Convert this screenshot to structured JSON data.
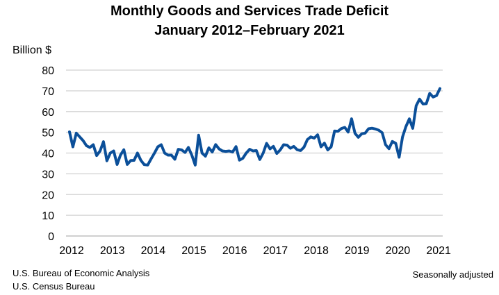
{
  "chart_data": {
    "type": "line",
    "title": "Monthly Goods and Services Trade Deficit",
    "subtitle": "January 2012–February 2021",
    "ylabel": "Billion $",
    "xlabel": "",
    "ylim": [
      0,
      80
    ],
    "yticks": [
      "0",
      "10",
      "20",
      "30",
      "40",
      "50",
      "60",
      "70",
      "80"
    ],
    "xticks": [
      "2012",
      "2013",
      "2014",
      "2015",
      "2016",
      "2017",
      "2018",
      "2019",
      "2020",
      "2021"
    ],
    "grid": true,
    "frequency": "monthly",
    "start": "2012-01",
    "end": "2021-02",
    "line_color": "#0b4f99",
    "values": [
      50.2,
      43,
      49.6,
      47.8,
      46,
      43.5,
      42.7,
      44,
      38.8,
      41,
      45.5,
      36.3,
      40,
      41,
      34.5,
      39,
      41.6,
      34.5,
      36.4,
      36.5,
      40,
      36.5,
      34.4,
      34.2,
      37.2,
      40,
      43,
      44,
      40,
      39,
      39,
      37,
      41.8,
      41.5,
      40.3,
      42.7,
      39,
      34.2,
      48.6,
      40,
      38.5,
      42.5,
      40.5,
      44.1,
      42,
      41,
      40.8,
      41,
      40.5,
      43.1,
      36.6,
      37.5,
      40,
      41.8,
      41,
      41.2,
      36.9,
      40,
      44.7,
      42,
      43.2,
      39.8,
      41.5,
      44,
      43.8,
      42.3,
      43.2,
      41.6,
      41.2,
      42.8,
      46.5,
      47.8,
      47.2,
      48.8,
      43,
      44.8,
      41.5,
      43,
      50.6,
      50.5,
      51.8,
      52.4,
      50.1,
      56.5,
      49.5,
      47.6,
      49.3,
      49.6,
      51.7,
      52,
      51.6,
      51,
      49.8,
      44,
      42.1,
      45.6,
      44.7,
      38,
      47.8,
      52.8,
      56.5,
      51.9,
      62.8,
      66,
      63.7,
      63.8,
      68.8,
      67,
      67.7,
      71.1
    ]
  },
  "footer": {
    "source_1": "U.S. Bureau of Economic Analysis",
    "source_2": "U.S. Census Bureau",
    "note": "Seasonally adjusted"
  }
}
